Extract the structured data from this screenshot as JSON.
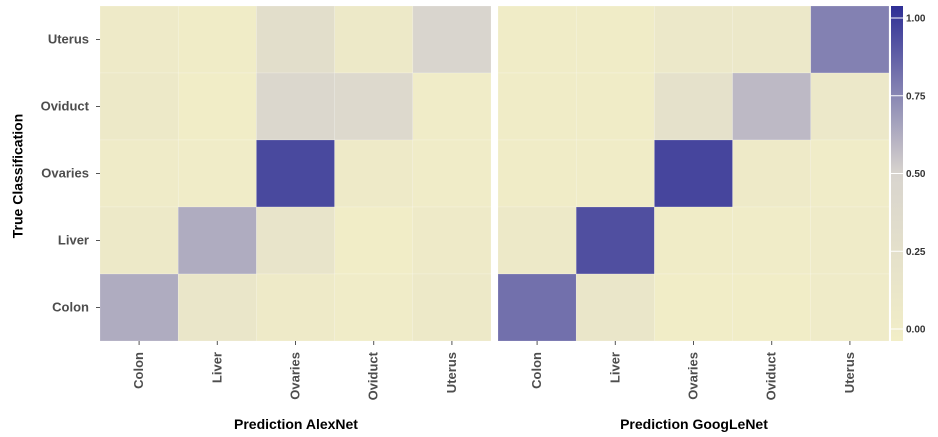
{
  "chart_data": {
    "type": "heatmap",
    "classes": [
      "Colon",
      "Liver",
      "Ovaries",
      "Oviduct",
      "Uterus"
    ],
    "y_categories": [
      "Uterus",
      "Oviduct",
      "Ovaries",
      "Liver",
      "Colon"
    ],
    "ylabel": "True Classification",
    "color_scale": {
      "min": 0,
      "max": 1,
      "low_color": "#f2eec7",
      "mid_color": "#d8d4ce",
      "high_color": "#2e2e95",
      "ticks": [
        "0.00",
        "0.25",
        "0.50",
        "0.75",
        "1.00"
      ],
      "tick_values": [
        0,
        0.25,
        0.5,
        0.75,
        1
      ]
    },
    "grid": true,
    "legend_placement": "right",
    "panels": [
      {
        "xlabel": "Prediction AlexNet",
        "matrix": [
          [
            0.08,
            0.03,
            0.3,
            0.1,
            0.48
          ],
          [
            0.1,
            0.02,
            0.44,
            0.4,
            0.04
          ],
          [
            0.05,
            0.04,
            0.92,
            0.08,
            0.04
          ],
          [
            0.1,
            0.62,
            0.2,
            0.02,
            0.08
          ],
          [
            0.62,
            0.16,
            0.07,
            0.04,
            0.1
          ]
        ]
      },
      {
        "xlabel": "Prediction GoogLeNet",
        "matrix": [
          [
            0.03,
            0.03,
            0.12,
            0.12,
            0.75
          ],
          [
            0.03,
            0.03,
            0.25,
            0.58,
            0.11
          ],
          [
            0.03,
            0.03,
            0.93,
            0.07,
            0.04
          ],
          [
            0.1,
            0.9,
            0.03,
            0.04,
            0.06
          ],
          [
            0.8,
            0.15,
            0.02,
            0.01,
            0.05
          ]
        ]
      }
    ]
  }
}
